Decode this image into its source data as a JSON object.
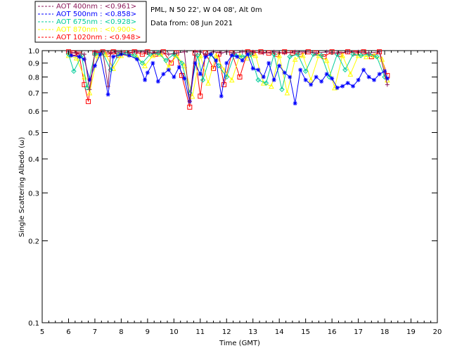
{
  "header": {
    "site": "PML, N 50 22', W 04 08', Alt 0m",
    "date": "Data from: 08 Jun 2021"
  },
  "chart_data": {
    "type": "scatter",
    "xlabel": "Time (GMT)",
    "ylabel": "Single Scattering Albedo (ω)",
    "xlim": [
      5,
      20
    ],
    "ylim": [
      0.1,
      1.0
    ],
    "yscale": "log",
    "x_ticks": [
      "5",
      "6",
      "7",
      "8",
      "9",
      "10",
      "11",
      "12",
      "13",
      "14",
      "15",
      "16",
      "17",
      "18",
      "19",
      "20"
    ],
    "y_ticks": [
      {
        "v": 0.1,
        "label": "0.1"
      },
      {
        "v": 0.2,
        "label": "0.2"
      },
      {
        "v": 0.3,
        "label": "0.3"
      },
      {
        "v": 0.4,
        "label": "0.4"
      },
      {
        "v": 0.5,
        "label": "0.5"
      },
      {
        "v": 0.6,
        "label": "0.6"
      },
      {
        "v": 0.7,
        "label": "0.7"
      },
      {
        "v": 0.8,
        "label": "0.8"
      },
      {
        "v": 0.9,
        "label": "0.9"
      },
      {
        "v": 1.0,
        "label": "1.0"
      }
    ],
    "grid": false,
    "legend_position": "top-left",
    "series": [
      {
        "name": "AOT  400nm : <0.961>",
        "color": "#8b1a5b",
        "marker": "plus",
        "x": [
          6.0,
          6.3,
          6.6,
          6.8,
          7.0,
          7.3,
          7.5,
          7.6,
          7.8,
          8.0,
          8.3,
          8.6,
          8.9,
          9.2,
          9.5,
          9.8,
          10.1,
          10.4,
          10.6,
          10.8,
          11.0,
          11.2,
          11.5,
          11.8,
          12.0,
          12.3,
          12.6,
          13.0,
          13.4,
          13.8,
          14.2,
          14.6,
          15.0,
          15.4,
          15.8,
          16.2,
          16.6,
          17.0,
          17.4,
          17.8,
          18.1
        ],
        "y": [
          0.99,
          0.98,
          0.97,
          0.72,
          0.99,
          0.99,
          0.74,
          0.98,
          0.99,
          0.99,
          0.98,
          0.99,
          0.99,
          0.98,
          0.99,
          0.97,
          0.98,
          0.99,
          0.65,
          0.99,
          0.99,
          0.97,
          0.99,
          0.98,
          0.99,
          0.98,
          0.99,
          0.99,
          0.98,
          0.99,
          0.98,
          0.99,
          0.99,
          0.98,
          0.99,
          0.98,
          0.99,
          0.99,
          0.98,
          0.99,
          0.75
        ]
      },
      {
        "name": "AOT  500nm : <0.858>",
        "color": "#0000ff",
        "marker": "star",
        "x": [
          6.1,
          6.4,
          6.6,
          6.8,
          7.0,
          7.2,
          7.5,
          7.7,
          8.0,
          8.3,
          8.6,
          8.9,
          9.0,
          9.2,
          9.4,
          9.6,
          9.8,
          10.0,
          10.2,
          10.4,
          10.6,
          10.8,
          11.0,
          11.2,
          11.4,
          11.6,
          11.8,
          12.0,
          12.2,
          12.4,
          12.6,
          12.8,
          13.0,
          13.2,
          13.4,
          13.6,
          13.8,
          14.0,
          14.2,
          14.4,
          14.6,
          14.8,
          15.0,
          15.2,
          15.4,
          15.6,
          15.8,
          16.0,
          16.2,
          16.4,
          16.6,
          16.8,
          17.0,
          17.2,
          17.4,
          17.6,
          17.8,
          18.0,
          18.1
        ],
        "y": [
          0.96,
          0.95,
          0.93,
          0.78,
          0.88,
          0.97,
          0.69,
          0.95,
          0.97,
          0.96,
          0.93,
          0.78,
          0.83,
          0.9,
          0.77,
          0.82,
          0.85,
          0.8,
          0.87,
          0.79,
          0.65,
          0.9,
          0.82,
          0.95,
          0.97,
          0.92,
          0.68,
          0.9,
          0.96,
          0.95,
          0.92,
          0.97,
          0.86,
          0.85,
          0.8,
          0.9,
          0.78,
          0.88,
          0.83,
          0.8,
          0.64,
          0.85,
          0.78,
          0.75,
          0.8,
          0.77,
          0.82,
          0.79,
          0.73,
          0.74,
          0.76,
          0.74,
          0.78,
          0.85,
          0.8,
          0.78,
          0.82,
          0.84,
          0.79
        ]
      },
      {
        "name": "AOT  675nm : <0.928>",
        "color": "#00cc99",
        "marker": "diamond",
        "x": [
          6.0,
          6.2,
          6.5,
          6.7,
          7.0,
          7.3,
          7.6,
          7.9,
          8.2,
          8.5,
          8.8,
          9.1,
          9.4,
          9.7,
          10.0,
          10.3,
          10.6,
          10.9,
          11.1,
          11.4,
          11.7,
          12.0,
          12.3,
          12.6,
          12.9,
          13.2,
          13.5,
          13.8,
          14.1,
          14.4,
          14.7,
          15.0,
          15.3,
          15.6,
          15.9,
          16.2,
          16.5,
          16.8,
          17.1,
          17.4,
          17.7,
          18.0
        ],
        "y": [
          0.97,
          0.84,
          0.96,
          0.73,
          0.97,
          0.98,
          0.85,
          0.97,
          0.98,
          0.96,
          0.9,
          0.97,
          0.98,
          0.92,
          0.97,
          0.9,
          0.7,
          0.96,
          0.78,
          0.97,
          0.88,
          0.8,
          0.97,
          0.95,
          0.97,
          0.78,
          0.76,
          0.97,
          0.72,
          0.95,
          0.97,
          0.84,
          0.97,
          0.96,
          0.8,
          0.97,
          0.85,
          0.97,
          0.96,
          0.97,
          0.95,
          0.8
        ]
      },
      {
        "name": "AOT  870nm : <0.900>",
        "color": "#ffff00",
        "marker": "triangle",
        "x": [
          6.0,
          6.3,
          6.6,
          6.8,
          7.1,
          7.4,
          7.7,
          8.0,
          8.3,
          8.6,
          8.9,
          9.2,
          9.5,
          9.8,
          10.1,
          10.4,
          10.7,
          11.0,
          11.3,
          11.6,
          11.9,
          12.2,
          12.5,
          12.8,
          13.1,
          13.4,
          13.7,
          14.0,
          14.3,
          14.6,
          14.9,
          15.2,
          15.5,
          15.8,
          16.1,
          16.4,
          16.7,
          17.0,
          17.3,
          17.6,
          17.9,
          18.1
        ],
        "y": [
          0.96,
          0.94,
          0.8,
          0.7,
          0.96,
          0.97,
          0.86,
          0.96,
          0.97,
          0.95,
          0.88,
          0.96,
          0.97,
          0.87,
          0.96,
          0.88,
          0.68,
          0.96,
          0.76,
          0.96,
          0.85,
          0.78,
          0.96,
          0.94,
          0.96,
          0.76,
          0.74,
          0.96,
          0.7,
          0.93,
          0.96,
          0.78,
          0.96,
          0.92,
          0.73,
          0.96,
          0.82,
          0.96,
          0.95,
          0.96,
          0.93,
          0.78
        ]
      },
      {
        "name": "AOT 1020nm : <0.948>",
        "color": "#ff0000",
        "marker": "square",
        "x": [
          6.0,
          6.2,
          6.4,
          6.6,
          6.75,
          7.0,
          7.3,
          7.5,
          7.7,
          7.9,
          8.2,
          8.5,
          8.8,
          9.0,
          9.3,
          9.6,
          9.9,
          10.1,
          10.3,
          10.6,
          10.8,
          11.0,
          11.2,
          11.5,
          11.7,
          11.9,
          12.2,
          12.5,
          12.8,
          13.0,
          13.3,
          13.6,
          13.9,
          14.2,
          14.5,
          14.8,
          15.1,
          15.4,
          15.7,
          16.0,
          16.3,
          16.6,
          16.9,
          17.2,
          17.5,
          17.8,
          18.1
        ],
        "y": [
          0.99,
          0.98,
          0.97,
          0.75,
          0.65,
          0.98,
          0.99,
          0.97,
          0.99,
          0.96,
          0.98,
          0.99,
          0.97,
          0.99,
          0.97,
          0.99,
          0.9,
          0.98,
          0.81,
          0.62,
          0.98,
          0.68,
          0.98,
          0.86,
          0.97,
          0.75,
          0.98,
          0.8,
          0.99,
          0.98,
          0.99,
          0.98,
          0.97,
          0.99,
          0.98,
          0.97,
          0.99,
          0.98,
          0.95,
          0.99,
          0.97,
          0.99,
          0.98,
          0.99,
          0.95,
          0.99,
          0.81
        ]
      }
    ]
  }
}
